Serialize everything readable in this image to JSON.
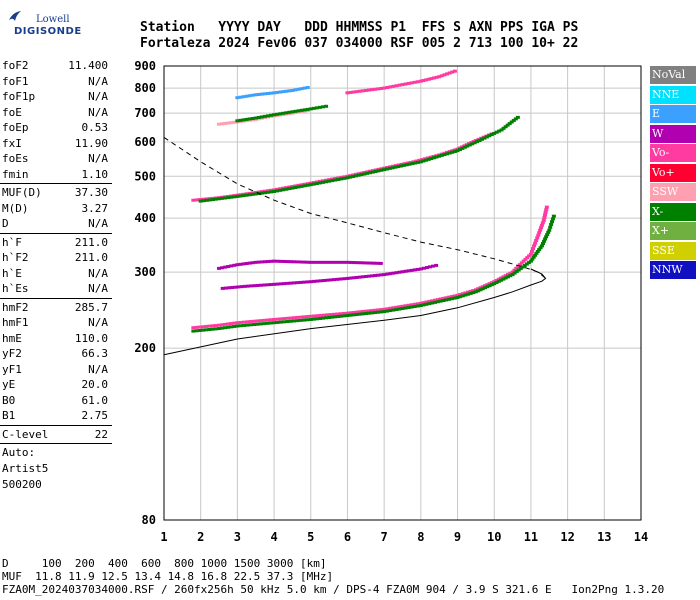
{
  "logo": {
    "brand_top": "Lowell",
    "brand_bottom": "DIGISONDE"
  },
  "header": {
    "line1": "Station   YYYY DAY   DDD HHMMSS P1  FFS S AXN PPS IGA PS",
    "line2": "Fortaleza 2024 Fev06 037 034000 RSF 005 2 713 100 10+ 22"
  },
  "params": [
    {
      "group": [
        {
          "name": "foF2",
          "value": "11.400"
        },
        {
          "name": "foF1",
          "value": "N/A"
        },
        {
          "name": "foF1p",
          "value": "N/A"
        },
        {
          "name": "foE",
          "value": "N/A"
        },
        {
          "name": "foEp",
          "value": "0.53"
        },
        {
          "name": "fxI",
          "value": "11.90"
        },
        {
          "name": "foEs",
          "value": "N/A"
        },
        {
          "name": "fmin",
          "value": "1.10"
        }
      ]
    },
    {
      "group": [
        {
          "name": "MUF(D)",
          "value": "37.30"
        },
        {
          "name": "M(D)",
          "value": "3.27"
        },
        {
          "name": "D",
          "value": "N/A"
        }
      ]
    },
    {
      "group": [
        {
          "name": "h`F",
          "value": "211.0"
        },
        {
          "name": "h`F2",
          "value": "211.0"
        },
        {
          "name": "h`E",
          "value": "N/A"
        },
        {
          "name": "h`Es",
          "value": "N/A"
        }
      ]
    },
    {
      "group": [
        {
          "name": "hmF2",
          "value": "285.7"
        },
        {
          "name": "hmF1",
          "value": "N/A"
        },
        {
          "name": "hmE",
          "value": "110.0"
        },
        {
          "name": "yF2",
          "value": "66.3"
        },
        {
          "name": "yF1",
          "value": "N/A"
        },
        {
          "name": "yE",
          "value": "20.0"
        },
        {
          "name": "B0",
          "value": "61.0"
        },
        {
          "name": "B1",
          "value": "2.75"
        }
      ]
    },
    {
      "group": [
        {
          "name": "C-level",
          "value": "22"
        }
      ]
    }
  ],
  "auto": {
    "line1": "Auto:",
    "line2": "Artist5",
    "line3": "500200"
  },
  "legend": [
    {
      "label": "NoVal",
      "color": "#808080"
    },
    {
      "label": "NNE",
      "color": "#00e0ff"
    },
    {
      "label": "E",
      "color": "#3ca0ff"
    },
    {
      "label": "W",
      "color": "#b000b0"
    },
    {
      "label": "Vo-",
      "color": "#ff3aa0"
    },
    {
      "label": "Vo+",
      "color": "#ff0030"
    },
    {
      "label": "SSW",
      "color": "#ffa0b0"
    },
    {
      "label": "X-",
      "color": "#008000"
    },
    {
      "label": "X+",
      "color": "#70b040"
    },
    {
      "label": "SSE",
      "color": "#d0d000"
    },
    {
      "label": "NNW",
      "color": "#1010c0"
    }
  ],
  "footer": {
    "line1": "D     100  200  400  600  800 1000 1500 3000 [km]",
    "line2": "MUF  11.8 11.9 12.5 13.4 14.8 16.8 22.5 37.3 [MHz]",
    "line3": "FZA0M_2024037034000.RSF / 260fx256h 50 kHz 5.0 km / DPS-4 FZA0M 904 / 3.9 S 321.6 E   Ion2Png 1.3.20"
  },
  "chart_data": {
    "type": "scatter",
    "title": "",
    "xlabel": "",
    "ylabel": "",
    "xlim": [
      1,
      14
    ],
    "ylim": [
      80,
      900
    ],
    "yscale": "log",
    "xticks": [
      1,
      2,
      3,
      4,
      5,
      6,
      7,
      8,
      9,
      10,
      11,
      12,
      13,
      14
    ],
    "yticks": [
      80,
      200,
      300,
      400,
      500,
      600,
      700,
      800,
      900
    ],
    "grid": true,
    "traces": [
      {
        "color": "#ff3aa0",
        "points": [
          [
            1.8,
            223
          ],
          [
            2.5,
            226
          ],
          [
            3,
            229
          ],
          [
            4,
            233
          ],
          [
            5,
            237
          ],
          [
            6,
            241
          ],
          [
            7,
            246
          ],
          [
            8,
            254
          ],
          [
            9,
            265
          ],
          [
            9.5,
            273
          ],
          [
            10,
            285
          ],
          [
            10.5,
            300
          ],
          [
            11,
            330
          ],
          [
            11.2,
            365
          ],
          [
            11.35,
            395
          ],
          [
            11.45,
            430
          ]
        ]
      },
      {
        "color": "#008000",
        "points": [
          [
            1.8,
            219
          ],
          [
            2.5,
            222
          ],
          [
            3,
            225
          ],
          [
            4,
            229
          ],
          [
            5,
            233
          ],
          [
            6,
            238
          ],
          [
            7,
            243
          ],
          [
            8,
            251
          ],
          [
            9,
            262
          ],
          [
            9.5,
            270
          ],
          [
            10,
            282
          ],
          [
            10.5,
            296
          ],
          [
            11,
            318
          ],
          [
            11.3,
            345
          ],
          [
            11.5,
            375
          ],
          [
            11.65,
            410
          ]
        ]
      },
      {
        "color": "#b000b0",
        "points": [
          [
            2.6,
            275
          ],
          [
            3.2,
            278
          ],
          [
            4,
            281
          ],
          [
            5,
            285
          ],
          [
            6,
            290
          ],
          [
            7,
            296
          ],
          [
            8,
            305
          ],
          [
            8.5,
            312
          ]
        ]
      },
      {
        "color": "#ff3aa0",
        "points": [
          [
            1.8,
            440
          ],
          [
            2.5,
            446
          ],
          [
            3,
            452
          ],
          [
            4,
            465
          ],
          [
            5,
            482
          ],
          [
            6,
            500
          ],
          [
            7,
            522
          ],
          [
            7.8,
            540
          ],
          [
            8.5,
            560
          ],
          [
            9,
            578
          ],
          [
            9.5,
            605
          ],
          [
            10,
            630
          ]
        ]
      },
      {
        "color": "#008000",
        "points": [
          [
            2,
            438
          ],
          [
            3,
            449
          ],
          [
            4,
            461
          ],
          [
            5,
            478
          ],
          [
            6,
            496
          ],
          [
            7,
            518
          ],
          [
            8,
            540
          ],
          [
            9,
            573
          ],
          [
            9.6,
            605
          ],
          [
            10.2,
            640
          ],
          [
            10.7,
            690
          ]
        ]
      },
      {
        "color": "#ffa0b0",
        "points": [
          [
            2.5,
            660
          ],
          [
            3,
            668
          ],
          [
            3.5,
            677
          ],
          [
            4,
            690
          ],
          [
            4.5,
            700
          ],
          [
            5,
            712
          ]
        ]
      },
      {
        "color": "#008000",
        "points": [
          [
            3,
            672
          ],
          [
            3.5,
            682
          ],
          [
            4,
            694
          ],
          [
            4.5,
            705
          ],
          [
            5,
            716
          ],
          [
            5.5,
            728
          ]
        ]
      },
      {
        "color": "#ff3aa0",
        "points": [
          [
            6,
            780
          ],
          [
            7,
            800
          ],
          [
            8,
            830
          ],
          [
            8.5,
            850
          ],
          [
            9,
            880
          ]
        ]
      },
      {
        "color": "#3ca0ff",
        "points": [
          [
            3,
            760
          ],
          [
            3.5,
            772
          ],
          [
            4,
            780
          ],
          [
            4.5,
            790
          ],
          [
            5,
            805
          ]
        ]
      },
      {
        "color": "#b000b0",
        "points": [
          [
            2.5,
            306
          ],
          [
            3,
            312
          ],
          [
            3.5,
            316
          ],
          [
            4,
            318
          ],
          [
            5,
            316
          ],
          [
            6,
            316
          ],
          [
            7,
            314
          ]
        ]
      }
    ],
    "profile_solid": [
      [
        1,
        193
      ],
      [
        3,
        210
      ],
      [
        5,
        222
      ],
      [
        7,
        232
      ],
      [
        8,
        238
      ],
      [
        9,
        248
      ],
      [
        10,
        262
      ],
      [
        10.5,
        270
      ],
      [
        11,
        280
      ],
      [
        11.3,
        285.7
      ],
      [
        11.4,
        290
      ],
      [
        11.3,
        297
      ],
      [
        11,
        305
      ]
    ],
    "profile_dashed": [
      [
        1,
        615
      ],
      [
        2,
        540
      ],
      [
        3,
        480
      ],
      [
        4,
        440
      ],
      [
        5,
        410
      ],
      [
        6,
        390
      ],
      [
        7,
        370
      ],
      [
        8,
        352
      ],
      [
        9,
        338
      ],
      [
        10,
        322
      ],
      [
        10.8,
        308
      ],
      [
        11.2,
        300
      ],
      [
        11.4,
        290
      ]
    ]
  }
}
